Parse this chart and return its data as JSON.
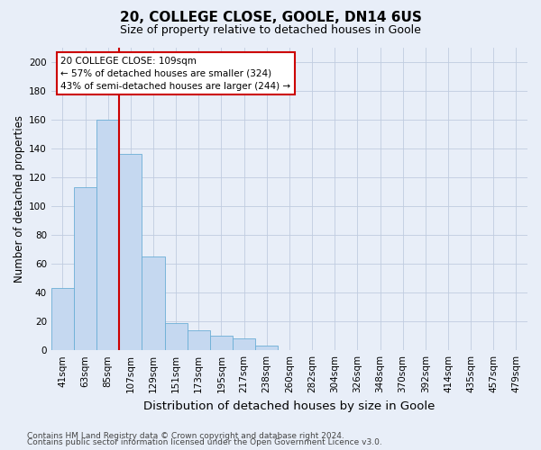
{
  "title": "20, COLLEGE CLOSE, GOOLE, DN14 6US",
  "subtitle": "Size of property relative to detached houses in Goole",
  "xlabel": "Distribution of detached houses by size in Goole",
  "ylabel": "Number of detached properties",
  "categories": [
    "41sqm",
    "63sqm",
    "85sqm",
    "107sqm",
    "129sqm",
    "151sqm",
    "173sqm",
    "195sqm",
    "217sqm",
    "238sqm",
    "260sqm",
    "282sqm",
    "304sqm",
    "326sqm",
    "348sqm",
    "370sqm",
    "392sqm",
    "414sqm",
    "435sqm",
    "457sqm",
    "479sqm"
  ],
  "values": [
    43,
    113,
    160,
    136,
    65,
    19,
    14,
    10,
    8,
    3,
    0,
    0,
    0,
    0,
    0,
    0,
    0,
    0,
    0,
    0,
    0
  ],
  "bar_color": "#c5d8f0",
  "bar_edge_color": "#6baed6",
  "red_line_x": 2.5,
  "red_line_color": "#cc0000",
  "annotation_text": "20 COLLEGE CLOSE: 109sqm\n← 57% of detached houses are smaller (324)\n43% of semi-detached houses are larger (244) →",
  "annotation_box_color": "#ffffff",
  "annotation_box_edge": "#cc0000",
  "ylim": [
    0,
    210
  ],
  "yticks": [
    0,
    20,
    40,
    60,
    80,
    100,
    120,
    140,
    160,
    180,
    200
  ],
  "footer1": "Contains HM Land Registry data © Crown copyright and database right 2024.",
  "footer2": "Contains public sector information licensed under the Open Government Licence v3.0.",
  "title_fontsize": 11,
  "subtitle_fontsize": 9,
  "xlabel_fontsize": 9.5,
  "ylabel_fontsize": 8.5,
  "tick_fontsize": 7.5,
  "annotation_fontsize": 7.5,
  "footer_fontsize": 6.5,
  "bg_color": "#e8eef8",
  "grid_color": "#c0cce0"
}
